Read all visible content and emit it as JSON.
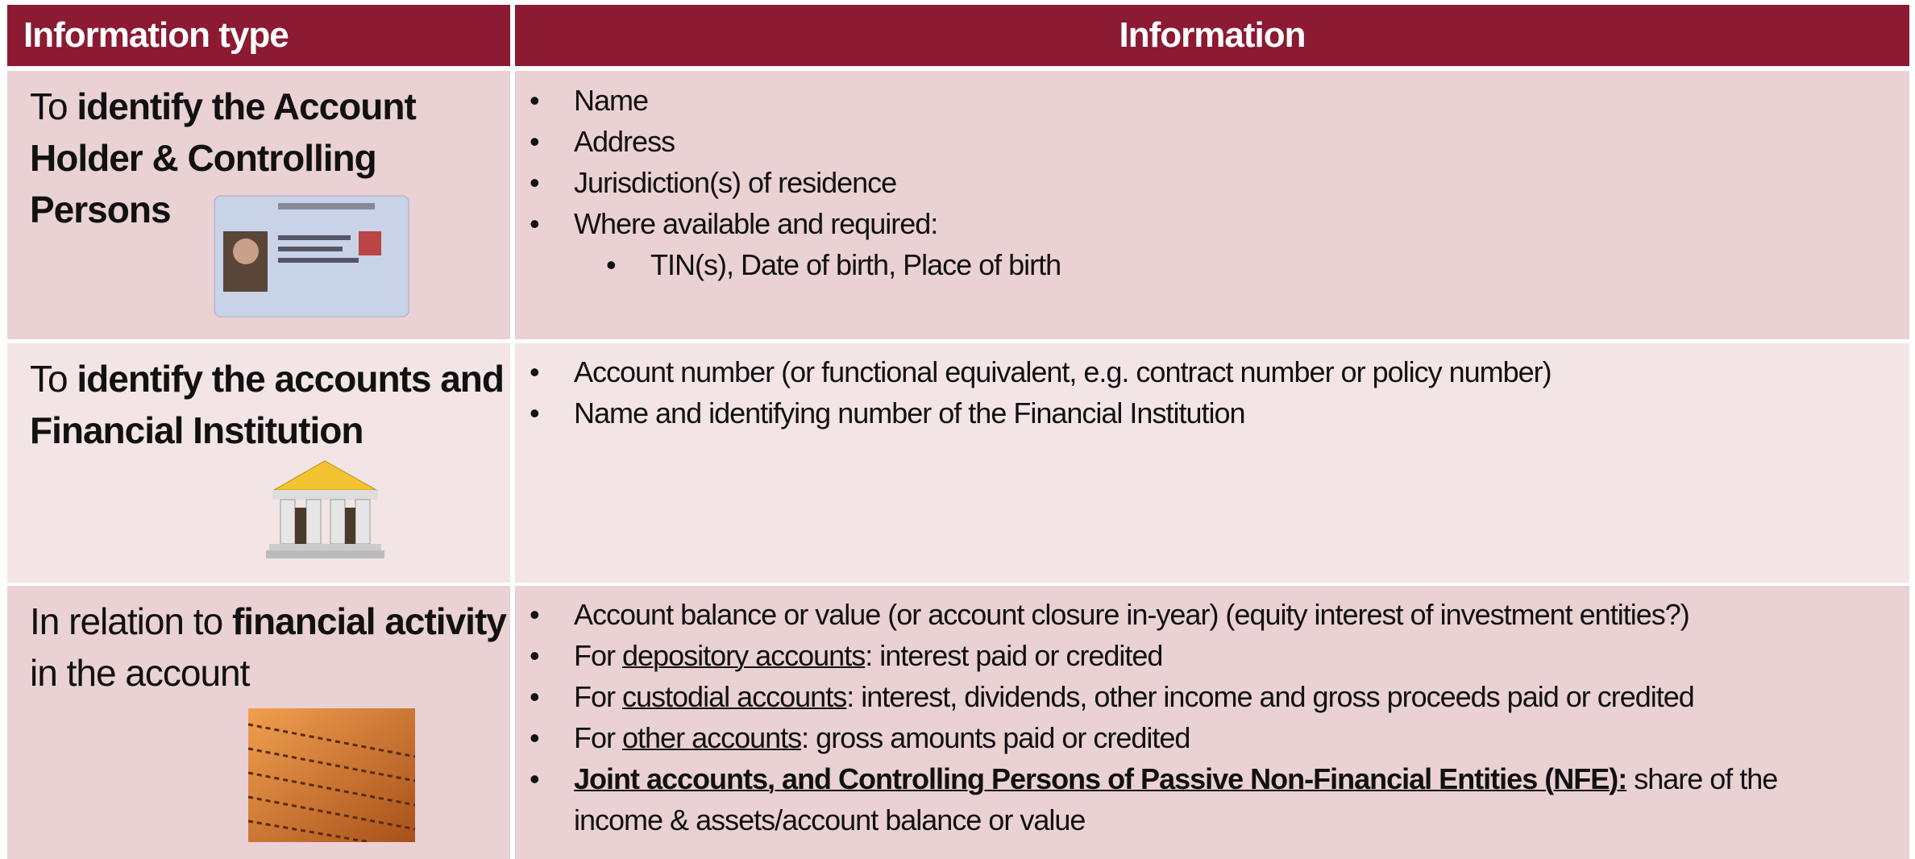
{
  "header": {
    "type": "Information type",
    "info": "Information"
  },
  "rows": [
    {
      "label": {
        "before": "To ",
        "bold": "identify the Account Holder & Controlling Persons"
      },
      "items": [
        "Name",
        "Address",
        "Jurisdiction(s) of residence",
        "Where available and required:"
      ],
      "subitems": [
        "TIN(s), Date of birth, Place of birth"
      ]
    },
    {
      "label": {
        "before": "To ",
        "bold": "identify the accounts and Financial Institution"
      },
      "items": [
        "Account number (or functional equivalent, e.g. contract number or policy number)",
        "Name and identifying number of the Financial Institution"
      ]
    },
    {
      "label": {
        "before": "In relation to ",
        "bold": "financial activity",
        "after": " in the account"
      },
      "items": [
        "Account balance or value (or account closure in-year) (equity interest of investment entities?)",
        {
          "before": "For ",
          "underline": "depository accounts",
          "after": ": interest paid or credited"
        },
        {
          "before": "For ",
          "underline": "custodial accounts",
          "after": ": interest, dividends, other income and gross proceeds paid or credited"
        },
        {
          "before": "For ",
          "underline": "other accounts",
          "after": ": gross amounts paid or credited"
        },
        {
          "strong": "Joint accounts, and Controlling Persons of Passive Non-Financial Entities (NFE):",
          "after": " share of the income & assets/account balance or value"
        }
      ]
    }
  ]
}
